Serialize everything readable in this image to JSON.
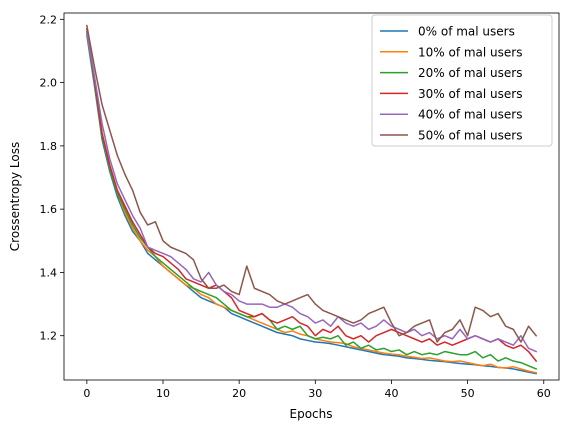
{
  "chart_data": {
    "type": "line",
    "title": "",
    "xlabel": "Epochs",
    "ylabel": "Crossentropy Loss",
    "xlim": [
      -3,
      62
    ],
    "ylim": [
      1.06,
      2.22
    ],
    "xticks": [
      0,
      10,
      20,
      30,
      40,
      50,
      60
    ],
    "yticks": [
      1.2,
      1.4,
      1.6,
      1.8,
      2.0,
      2.2
    ],
    "grid": false,
    "legend_position": "top-right",
    "x": [
      0,
      1,
      2,
      3,
      4,
      5,
      6,
      7,
      8,
      9,
      10,
      11,
      12,
      13,
      14,
      15,
      16,
      17,
      18,
      19,
      20,
      21,
      22,
      23,
      24,
      25,
      26,
      27,
      28,
      29,
      30,
      31,
      32,
      33,
      34,
      35,
      36,
      37,
      38,
      39,
      40,
      41,
      42,
      43,
      44,
      45,
      46,
      47,
      48,
      49,
      50,
      51,
      52,
      53,
      54,
      55,
      56,
      57,
      58,
      59
    ],
    "series": [
      {
        "name": "0% of mal users",
        "color": "#1f77b4",
        "values": [
          2.15,
          1.99,
          1.82,
          1.72,
          1.64,
          1.58,
          1.53,
          1.5,
          1.46,
          1.44,
          1.42,
          1.4,
          1.38,
          1.36,
          1.34,
          1.32,
          1.31,
          1.3,
          1.29,
          1.27,
          1.26,
          1.25,
          1.24,
          1.23,
          1.22,
          1.21,
          1.205,
          1.2,
          1.19,
          1.185,
          1.18,
          1.178,
          1.175,
          1.17,
          1.165,
          1.16,
          1.155,
          1.15,
          1.145,
          1.14,
          1.138,
          1.135,
          1.13,
          1.128,
          1.125,
          1.122,
          1.12,
          1.118,
          1.115,
          1.112,
          1.11,
          1.108,
          1.105,
          1.103,
          1.1,
          1.098,
          1.095,
          1.09,
          1.085,
          1.08
        ]
      },
      {
        "name": "10% of mal users",
        "color": "#ff7f0e",
        "values": [
          2.16,
          2.0,
          1.83,
          1.73,
          1.65,
          1.59,
          1.54,
          1.5,
          1.47,
          1.45,
          1.42,
          1.4,
          1.38,
          1.36,
          1.35,
          1.33,
          1.32,
          1.3,
          1.29,
          1.28,
          1.27,
          1.26,
          1.25,
          1.24,
          1.23,
          1.22,
          1.21,
          1.215,
          1.205,
          1.2,
          1.19,
          1.185,
          1.18,
          1.178,
          1.175,
          1.165,
          1.16,
          1.155,
          1.15,
          1.145,
          1.142,
          1.14,
          1.135,
          1.132,
          1.128,
          1.13,
          1.125,
          1.12,
          1.118,
          1.12,
          1.115,
          1.11,
          1.105,
          1.11,
          1.1,
          1.098,
          1.102,
          1.095,
          1.088,
          1.083
        ]
      },
      {
        "name": "20% of mal users",
        "color": "#2ca02c",
        "values": [
          2.16,
          2.0,
          1.83,
          1.73,
          1.65,
          1.6,
          1.55,
          1.51,
          1.48,
          1.45,
          1.43,
          1.41,
          1.39,
          1.37,
          1.35,
          1.34,
          1.33,
          1.32,
          1.3,
          1.28,
          1.27,
          1.26,
          1.26,
          1.27,
          1.25,
          1.22,
          1.23,
          1.22,
          1.23,
          1.2,
          1.19,
          1.195,
          1.19,
          1.2,
          1.17,
          1.18,
          1.16,
          1.17,
          1.155,
          1.16,
          1.15,
          1.155,
          1.14,
          1.15,
          1.14,
          1.145,
          1.14,
          1.15,
          1.145,
          1.14,
          1.14,
          1.15,
          1.13,
          1.14,
          1.12,
          1.13,
          1.12,
          1.115,
          1.105,
          1.095
        ]
      },
      {
        "name": "30% of mal users",
        "color": "#d62728",
        "values": [
          2.17,
          2.01,
          1.84,
          1.74,
          1.66,
          1.61,
          1.56,
          1.52,
          1.48,
          1.46,
          1.45,
          1.43,
          1.41,
          1.38,
          1.37,
          1.36,
          1.35,
          1.36,
          1.34,
          1.32,
          1.28,
          1.27,
          1.26,
          1.27,
          1.25,
          1.24,
          1.25,
          1.26,
          1.24,
          1.23,
          1.2,
          1.22,
          1.21,
          1.23,
          1.2,
          1.19,
          1.2,
          1.18,
          1.2,
          1.21,
          1.22,
          1.21,
          1.2,
          1.19,
          1.18,
          1.19,
          1.17,
          1.18,
          1.17,
          1.18,
          1.19,
          1.2,
          1.19,
          1.18,
          1.19,
          1.17,
          1.16,
          1.17,
          1.15,
          1.12
        ]
      },
      {
        "name": "40% of mal users",
        "color": "#9467bd",
        "values": [
          2.16,
          2.02,
          1.87,
          1.76,
          1.68,
          1.63,
          1.58,
          1.54,
          1.48,
          1.47,
          1.46,
          1.45,
          1.43,
          1.41,
          1.38,
          1.37,
          1.4,
          1.36,
          1.34,
          1.33,
          1.31,
          1.3,
          1.3,
          1.3,
          1.29,
          1.29,
          1.3,
          1.29,
          1.27,
          1.26,
          1.24,
          1.25,
          1.23,
          1.26,
          1.24,
          1.23,
          1.24,
          1.22,
          1.23,
          1.25,
          1.23,
          1.22,
          1.21,
          1.22,
          1.2,
          1.21,
          1.19,
          1.2,
          1.19,
          1.22,
          1.19,
          1.2,
          1.19,
          1.18,
          1.19,
          1.18,
          1.17,
          1.2,
          1.16,
          1.15
        ]
      },
      {
        "name": "50% of mal users",
        "color": "#8c564b",
        "values": [
          2.18,
          2.05,
          1.93,
          1.85,
          1.77,
          1.71,
          1.66,
          1.59,
          1.55,
          1.56,
          1.5,
          1.48,
          1.47,
          1.46,
          1.44,
          1.38,
          1.35,
          1.35,
          1.36,
          1.34,
          1.33,
          1.42,
          1.35,
          1.34,
          1.33,
          1.31,
          1.3,
          1.31,
          1.32,
          1.33,
          1.3,
          1.28,
          1.27,
          1.26,
          1.25,
          1.24,
          1.25,
          1.27,
          1.28,
          1.29,
          1.24,
          1.2,
          1.21,
          1.23,
          1.24,
          1.25,
          1.18,
          1.21,
          1.22,
          1.25,
          1.2,
          1.29,
          1.28,
          1.26,
          1.27,
          1.23,
          1.22,
          1.18,
          1.23,
          1.2
        ]
      }
    ]
  }
}
